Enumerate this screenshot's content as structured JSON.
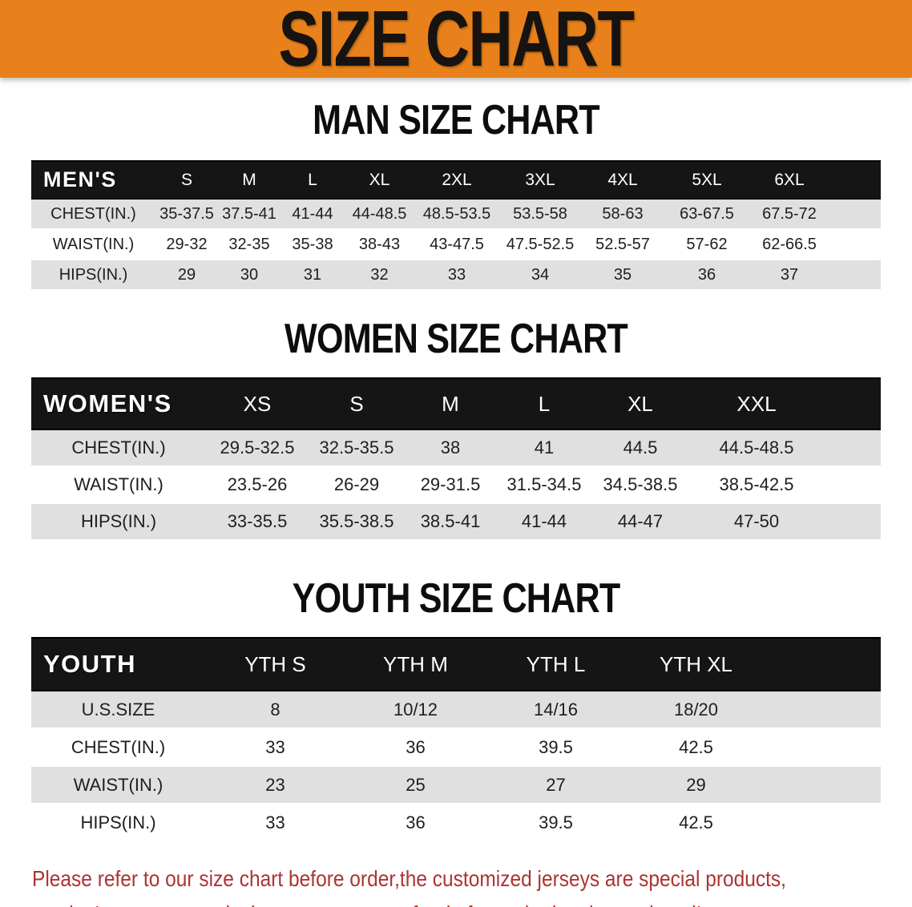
{
  "banner": {
    "title": "SIZE CHART"
  },
  "colors": {
    "banner_orange": "#E8811B",
    "banner_text": "#161310",
    "header_black": "#151515",
    "row_gray": "#E0E0E0",
    "text_dark": "#1E1E1E",
    "disclaimer_red": "#AC3431"
  },
  "sections": [
    {
      "id": "men",
      "heading": "MAN SIZE CHART",
      "table": {
        "corner_label": "MEN'S",
        "sizes": [
          "S",
          "M",
          "L",
          "XL",
          "2XL",
          "3XL",
          "4XL",
          "5XL",
          "6XL"
        ],
        "rows": [
          {
            "label": "CHEST(IN.)",
            "values": [
              "35-37.5",
              "37.5-41",
              "41-44",
              "44-48.5",
              "48.5-53.5",
              "53.5-58",
              "58-63",
              "63-67.5",
              "67.5-72"
            ]
          },
          {
            "label": "WAIST(IN.)",
            "values": [
              "29-32",
              "32-35",
              "35-38",
              "38-43",
              "43-47.5",
              "47.5-52.5",
              "52.5-57",
              "57-62",
              "62-66.5"
            ]
          },
          {
            "label": "HIPS(IN.)",
            "values": [
              "29",
              "30",
              "31",
              "32",
              "33",
              "34",
              "35",
              "36",
              "37"
            ]
          }
        ]
      }
    },
    {
      "id": "women",
      "heading": "WOMEN SIZE CHART",
      "table": {
        "corner_label": "WOMEN'S",
        "sizes": [
          "XS",
          "S",
          "M",
          "L",
          "XL",
          "XXL"
        ],
        "rows": [
          {
            "label": "CHEST(IN.)",
            "values": [
              "29.5-32.5",
              "32.5-35.5",
              "38",
              "41",
              "44.5",
              "44.5-48.5"
            ]
          },
          {
            "label": "WAIST(IN.)",
            "values": [
              "23.5-26",
              "26-29",
              "29-31.5",
              "31.5-34.5",
              "34.5-38.5",
              "38.5-42.5"
            ]
          },
          {
            "label": "HIPS(IN.)",
            "values": [
              "33-35.5",
              "35.5-38.5",
              "38.5-41",
              "41-44",
              "44-47",
              "47-50"
            ]
          }
        ]
      }
    },
    {
      "id": "youth",
      "heading": "YOUTH SIZE CHART",
      "table": {
        "corner_label": "YOUTH",
        "sizes": [
          "YTH S",
          "YTH M",
          "YTH L",
          "YTH XL"
        ],
        "rows": [
          {
            "label": "U.S.SIZE",
            "values": [
              "8",
              "10/12",
              "14/16",
              "18/20"
            ]
          },
          {
            "label": "CHEST(IN.)",
            "values": [
              "33",
              "36",
              "39.5",
              "42.5"
            ]
          },
          {
            "label": "WAIST(IN.)",
            "values": [
              "23",
              "25",
              "27",
              "29"
            ]
          },
          {
            "label": "HIPS(IN.)",
            "values": [
              "33",
              "36",
              "39.5",
              "42.5"
            ]
          }
        ]
      }
    }
  ],
  "disclaimer": {
    "lines": [
      "Please refer to our size chart before order,the customized jerseys are special products,",
      "we don't accept cancel, change, teturn or refund after order has been placed!"
    ]
  }
}
